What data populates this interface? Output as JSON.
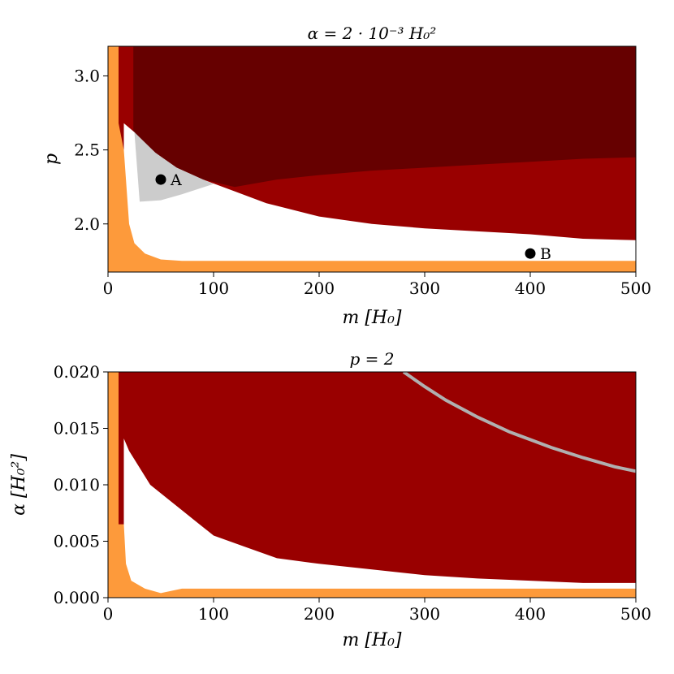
{
  "chart_data": [
    {
      "type": "heatmap",
      "title": "α = 2 · 10⁻³ H₀²",
      "xlabel": "m [H₀]",
      "ylabel": "p",
      "xlim": [
        0,
        500
      ],
      "ylim": [
        1.675,
        3.2
      ],
      "xticks": [
        "0",
        "100",
        "200",
        "300",
        "400",
        "500"
      ],
      "yticks": [
        "2.0",
        "2.5",
        "3.0"
      ],
      "ytick_values": [
        2.0,
        2.5,
        3.0
      ],
      "grid": false,
      "colors": {
        "orange": "#fd9a3b",
        "red": "#990000",
        "darkred": "#660000",
        "white": "#ffffff",
        "gray": "#cccccc"
      },
      "regions": {
        "orange_boundary": [
          [
            0,
            3.2
          ],
          [
            10,
            3.2
          ],
          [
            10,
            2.68
          ],
          [
            15,
            2.5
          ],
          [
            18,
            2.2
          ],
          [
            20,
            2.0
          ],
          [
            25,
            1.87
          ],
          [
            35,
            1.8
          ],
          [
            50,
            1.76
          ],
          [
            70,
            1.75
          ],
          [
            500,
            1.75
          ]
        ],
        "white_top": [
          [
            15,
            2.68
          ],
          [
            25,
            2.62
          ],
          [
            30,
            2.58
          ],
          [
            45,
            2.48
          ],
          [
            65,
            2.38
          ],
          [
            90,
            2.3
          ],
          [
            120,
            2.22
          ],
          [
            150,
            2.14
          ],
          [
            200,
            2.05
          ],
          [
            250,
            2.0
          ],
          [
            300,
            1.97
          ],
          [
            350,
            1.95
          ],
          [
            400,
            1.93
          ],
          [
            450,
            1.9
          ],
          [
            500,
            1.89
          ]
        ],
        "darkred_lower": [
          [
            25,
            2.58
          ],
          [
            40,
            2.48
          ],
          [
            60,
            2.38
          ],
          [
            90,
            2.3
          ],
          [
            120,
            2.25
          ],
          [
            160,
            2.3
          ],
          [
            200,
            2.33
          ],
          [
            250,
            2.36
          ],
          [
            300,
            2.38
          ],
          [
            350,
            2.4
          ],
          [
            400,
            2.42
          ],
          [
            450,
            2.44
          ],
          [
            500,
            2.45
          ]
        ],
        "darkred_left": 24,
        "gray_top": [
          [
            25,
            2.62
          ],
          [
            45,
            2.48
          ],
          [
            65,
            2.38
          ],
          [
            90,
            2.3
          ]
        ],
        "gray_bottom": [
          [
            30,
            2.15
          ],
          [
            50,
            2.16
          ],
          [
            70,
            2.2
          ],
          [
            100,
            2.27
          ]
        ]
      },
      "points": [
        {
          "label": "A",
          "x": 50,
          "y": 2.3
        },
        {
          "label": "B",
          "x": 400,
          "y": 1.8
        }
      ]
    },
    {
      "type": "heatmap",
      "title": "p = 2",
      "xlabel": "m [H₀]",
      "ylabel": "α [H₀²]",
      "xlim": [
        0,
        500
      ],
      "ylim": [
        0,
        0.02
      ],
      "xticks": [
        "0",
        "100",
        "200",
        "300",
        "400",
        "500"
      ],
      "yticks": [
        "0.000",
        "0.005",
        "0.010",
        "0.015",
        "0.020"
      ],
      "ytick_values": [
        0,
        0.005,
        0.01,
        0.015,
        0.02
      ],
      "grid": false,
      "colors": {
        "orange": "#fd9a3b",
        "red": "#990000",
        "white": "#ffffff",
        "curve": "#b0b0b0"
      },
      "regions": {
        "orange_boundary": [
          [
            0,
            0.02
          ],
          [
            10,
            0.02
          ],
          [
            10,
            0.0065
          ],
          [
            15,
            0.0065
          ],
          [
            17,
            0.003
          ],
          [
            22,
            0.0015
          ],
          [
            35,
            0.0008
          ],
          [
            50,
            0.0004
          ],
          [
            70,
            0.0008
          ],
          [
            500,
            0.0008
          ]
        ],
        "white_top": [
          [
            15,
            0.0141
          ],
          [
            20,
            0.013
          ],
          [
            30,
            0.0115
          ],
          [
            40,
            0.01
          ],
          [
            60,
            0.0085
          ],
          [
            80,
            0.007
          ],
          [
            100,
            0.0055
          ],
          [
            130,
            0.0045
          ],
          [
            160,
            0.0035
          ],
          [
            200,
            0.003
          ],
          [
            250,
            0.0025
          ],
          [
            300,
            0.002
          ],
          [
            350,
            0.0017
          ],
          [
            400,
            0.0015
          ],
          [
            450,
            0.0013
          ],
          [
            500,
            0.0013
          ]
        ],
        "curve": [
          [
            280,
            0.02
          ],
          [
            300,
            0.0187
          ],
          [
            320,
            0.0175
          ],
          [
            350,
            0.016
          ],
          [
            380,
            0.0147
          ],
          [
            400,
            0.014
          ],
          [
            420,
            0.0133
          ],
          [
            450,
            0.0124
          ],
          [
            480,
            0.0116
          ],
          [
            500,
            0.0112
          ]
        ]
      }
    }
  ]
}
